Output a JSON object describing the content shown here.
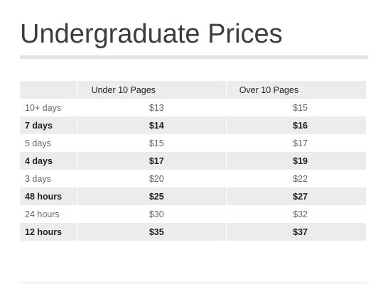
{
  "page": {
    "title": "Undergraduate Prices"
  },
  "table": {
    "headers": {
      "label": "",
      "under": "Under 10 Pages",
      "over": "Over 10 Pages"
    },
    "rows": [
      {
        "deadline": "10+ days",
        "under": "$13",
        "over": "$15",
        "emphasis": false
      },
      {
        "deadline": "7 days",
        "under": "$14",
        "over": "$16",
        "emphasis": true
      },
      {
        "deadline": "5 days",
        "under": "$15",
        "over": "$17",
        "emphasis": false
      },
      {
        "deadline": "4 days",
        "under": "$17",
        "over": "$19",
        "emphasis": true
      },
      {
        "deadline": "3 days",
        "under": "$20",
        "over": "$22",
        "emphasis": false
      },
      {
        "deadline": "48 hours",
        "under": "$25",
        "over": "$27",
        "emphasis": true
      },
      {
        "deadline": "24 hours",
        "under": "$30",
        "over": "$32",
        "emphasis": false
      },
      {
        "deadline": "12 hours",
        "under": "$35",
        "over": "$37",
        "emphasis": true
      }
    ]
  },
  "colors": {
    "title": "#3d3d3d",
    "stripe": "#ececec",
    "light_text": "#666666",
    "bold_text": "#222222"
  }
}
